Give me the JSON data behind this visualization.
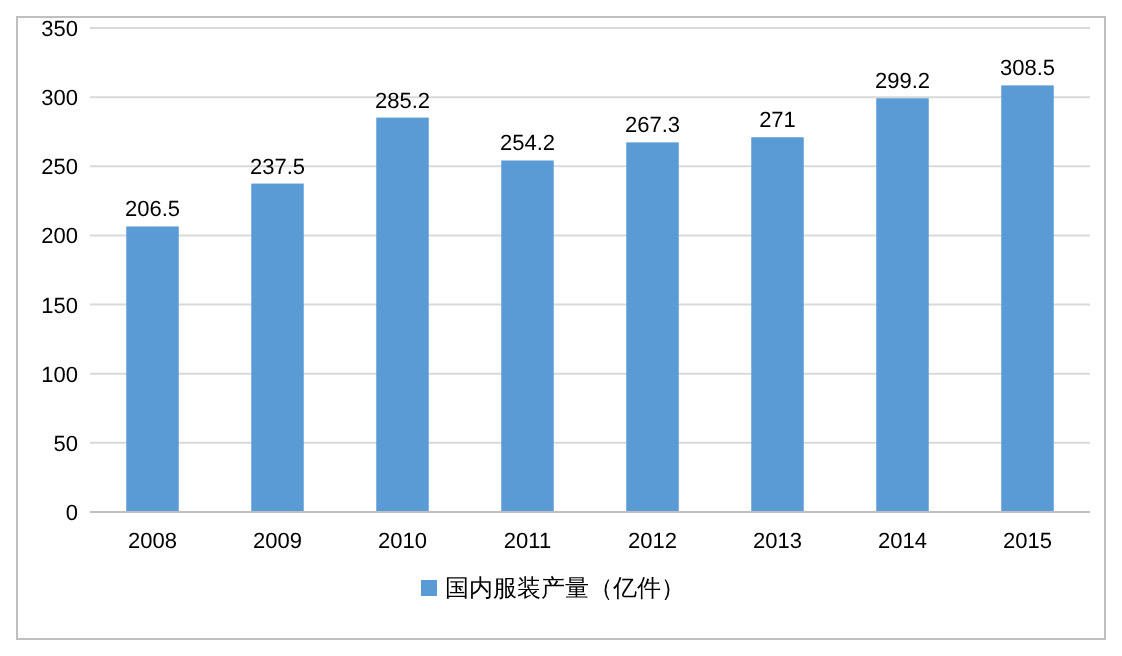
{
  "chart_data": {
    "type": "bar",
    "categories": [
      "2008",
      "2009",
      "2010",
      "2011",
      "2012",
      "2013",
      "2014",
      "2015"
    ],
    "series": [
      {
        "name": "国内服装产量（亿件）",
        "color": "#5b9bd5",
        "values": [
          206.5,
          237.5,
          285.2,
          254.2,
          267.3,
          271,
          299.2,
          308.5
        ]
      }
    ],
    "ylim": [
      0,
      350
    ],
    "yticks": [
      0,
      50,
      100,
      150,
      200,
      250,
      300,
      350
    ],
    "grid": "y",
    "legend": "bottom",
    "data_labels": true
  }
}
